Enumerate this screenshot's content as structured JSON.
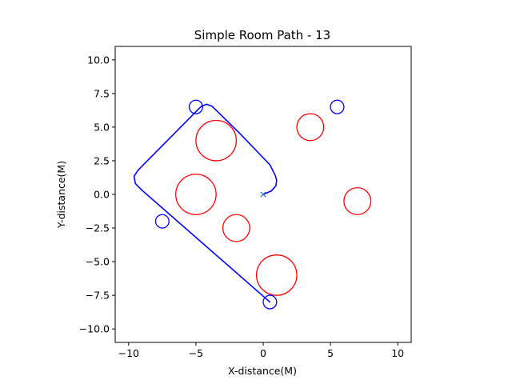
{
  "chart_data": {
    "type": "scatter",
    "title": "Simple Room Path - 13",
    "xlabel": "X-distance(M)",
    "ylabel": "Y-distance(M)",
    "xlim": [
      -11,
      11
    ],
    "ylim": [
      -11,
      11
    ],
    "grid": false,
    "x_ticks": [
      -10,
      -5,
      0,
      5,
      10
    ],
    "x_tick_labels": [
      "−10",
      "−5",
      "0",
      "5",
      "10"
    ],
    "y_ticks": [
      10,
      7.5,
      5,
      2.5,
      0,
      -2.5,
      -5,
      -7.5,
      -10
    ],
    "y_tick_labels": [
      "10.0",
      "7.5",
      "5.0",
      "2.5",
      "0.0",
      "−2.5",
      "−5.0",
      "−7.5",
      "−10.0"
    ],
    "colors": {
      "path": "#0000ff",
      "obstacle": "#ff0000",
      "waypoint": "#0000ff",
      "start": "#1f77b4"
    },
    "start_marker": {
      "x": 0,
      "y": 0
    },
    "path": [
      [
        0.0,
        0.0
      ],
      [
        0.6,
        0.25
      ],
      [
        0.95,
        0.65
      ],
      [
        1.0,
        1.05
      ],
      [
        0.9,
        1.4
      ],
      [
        0.5,
        2.2
      ],
      [
        -1.8,
        4.6
      ],
      [
        -3.8,
        6.55
      ],
      [
        -4.2,
        6.7
      ],
      [
        -4.6,
        6.55
      ],
      [
        -9.3,
        1.8
      ],
      [
        -9.6,
        1.35
      ],
      [
        -9.5,
        0.8
      ],
      [
        -9.0,
        0.3
      ],
      [
        0.5,
        -8.0
      ]
    ],
    "obstacles": [
      {
        "x": -3.5,
        "y": 4.0,
        "r": 1.5
      },
      {
        "x": -5.0,
        "y": 0.0,
        "r": 1.5
      },
      {
        "x": -2.0,
        "y": -2.5,
        "r": 1.0
      },
      {
        "x": 1.0,
        "y": -6.0,
        "r": 1.5
      },
      {
        "x": 3.5,
        "y": 5.0,
        "r": 1.0
      },
      {
        "x": 7.0,
        "y": -0.5,
        "r": 1.0
      }
    ],
    "waypoints": [
      {
        "x": -5.0,
        "y": 6.5,
        "r": 0.5
      },
      {
        "x": 5.5,
        "y": 6.5,
        "r": 0.5
      },
      {
        "x": -7.5,
        "y": -2.0,
        "r": 0.5
      },
      {
        "x": 0.5,
        "y": -8.0,
        "r": 0.5
      }
    ]
  }
}
